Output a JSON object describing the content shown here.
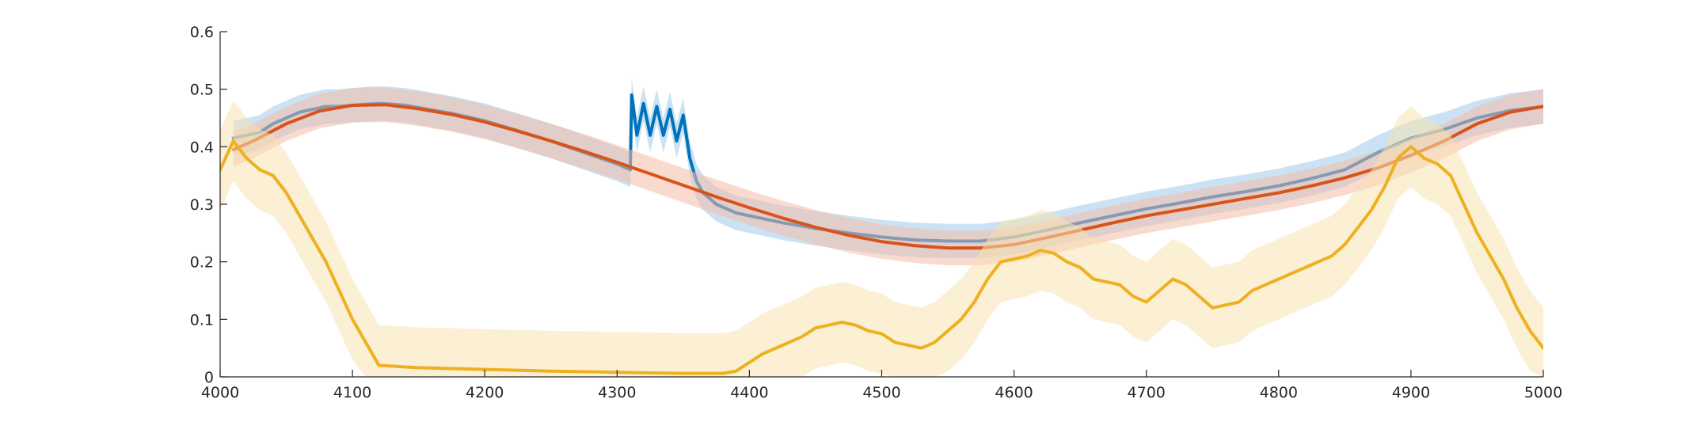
{
  "chart_data": {
    "type": "line",
    "title": "",
    "xlabel": "",
    "ylabel": "",
    "xlim": [
      4000,
      5000
    ],
    "ylim": [
      0,
      0.6
    ],
    "x_ticks": [
      "4000",
      "4100",
      "4200",
      "4300",
      "4400",
      "4500",
      "4600",
      "4700",
      "4800",
      "4900",
      "5000"
    ],
    "y_ticks": [
      "0",
      "0.1",
      "0.2",
      "0.3",
      "0.4",
      "0.5",
      "0.6"
    ],
    "grid": false,
    "legend": "none",
    "series": [
      {
        "color": "#0072BD",
        "band_color": "#9ECAE9",
        "band_width": 0.03,
        "x": [
          4010,
          4020,
          4030,
          4040,
          4050,
          4060,
          4070,
          4080,
          4090,
          4100,
          4110,
          4120,
          4130,
          4140,
          4150,
          4175,
          4200,
          4225,
          4250,
          4275,
          4300,
          4310,
          4311,
          4315,
          4320,
          4325,
          4330,
          4335,
          4340,
          4345,
          4350,
          4355,
          4360,
          4365,
          4370,
          4375,
          4380,
          4390,
          4400,
          4425,
          4450,
          4475,
          4500,
          4525,
          4550,
          4575,
          4600,
          4625,
          4650,
          4675,
          4700,
          4725,
          4750,
          4775,
          4800,
          4825,
          4850,
          4875,
          4900,
          4925,
          4950,
          4975,
          5000
        ],
        "y": [
          0.415,
          0.42,
          0.425,
          0.44,
          0.45,
          0.46,
          0.465,
          0.47,
          0.47,
          0.472,
          0.474,
          0.475,
          0.474,
          0.472,
          0.468,
          0.458,
          0.445,
          0.428,
          0.41,
          0.39,
          0.37,
          0.36,
          0.49,
          0.42,
          0.475,
          0.42,
          0.47,
          0.42,
          0.465,
          0.41,
          0.455,
          0.38,
          0.34,
          0.32,
          0.31,
          0.3,
          0.295,
          0.285,
          0.28,
          0.268,
          0.258,
          0.25,
          0.243,
          0.238,
          0.236,
          0.236,
          0.243,
          0.255,
          0.268,
          0.28,
          0.292,
          0.302,
          0.313,
          0.322,
          0.332,
          0.345,
          0.36,
          0.39,
          0.415,
          0.43,
          0.45,
          0.463,
          0.47
        ]
      },
      {
        "color": "#D95319",
        "band_color": "#F4BCA7",
        "band_width": 0.03,
        "x": [
          4010,
          4025,
          4050,
          4075,
          4100,
          4125,
          4150,
          4175,
          4200,
          4225,
          4250,
          4275,
          4300,
          4325,
          4350,
          4375,
          4400,
          4425,
          4450,
          4475,
          4500,
          4525,
          4550,
          4575,
          4600,
          4625,
          4650,
          4675,
          4700,
          4725,
          4750,
          4775,
          4800,
          4825,
          4850,
          4875,
          4900,
          4925,
          4950,
          4975,
          5000
        ],
        "y": [
          0.395,
          0.41,
          0.44,
          0.462,
          0.472,
          0.473,
          0.466,
          0.456,
          0.443,
          0.427,
          0.41,
          0.392,
          0.373,
          0.353,
          0.333,
          0.313,
          0.294,
          0.276,
          0.26,
          0.246,
          0.235,
          0.228,
          0.224,
          0.224,
          0.23,
          0.242,
          0.255,
          0.268,
          0.28,
          0.29,
          0.3,
          0.31,
          0.32,
          0.332,
          0.346,
          0.363,
          0.385,
          0.41,
          0.44,
          0.46,
          0.47
        ]
      },
      {
        "color": "#EDB120",
        "band_color": "#F7E2B0",
        "band_width": 0.07,
        "x": [
          4000,
          4010,
          4020,
          4030,
          4040,
          4050,
          4060,
          4070,
          4080,
          4090,
          4100,
          4110,
          4120,
          4150,
          4200,
          4250,
          4300,
          4350,
          4380,
          4390,
          4400,
          4410,
          4420,
          4430,
          4440,
          4450,
          4460,
          4470,
          4480,
          4490,
          4500,
          4510,
          4520,
          4530,
          4540,
          4550,
          4560,
          4570,
          4580,
          4590,
          4600,
          4610,
          4620,
          4630,
          4640,
          4650,
          4660,
          4670,
          4680,
          4690,
          4700,
          4710,
          4720,
          4730,
          4740,
          4750,
          4760,
          4770,
          4780,
          4790,
          4800,
          4810,
          4820,
          4830,
          4840,
          4850,
          4860,
          4870,
          4880,
          4890,
          4900,
          4910,
          4920,
          4930,
          4940,
          4950,
          4960,
          4970,
          4980,
          4990,
          5000
        ],
        "y": [
          0.36,
          0.41,
          0.38,
          0.36,
          0.35,
          0.32,
          0.28,
          0.24,
          0.2,
          0.15,
          0.1,
          0.06,
          0.02,
          0.016,
          0.013,
          0.01,
          0.008,
          0.006,
          0.006,
          0.01,
          0.025,
          0.04,
          0.05,
          0.06,
          0.07,
          0.085,
          0.09,
          0.095,
          0.09,
          0.08,
          0.075,
          0.06,
          0.055,
          0.05,
          0.06,
          0.08,
          0.1,
          0.13,
          0.17,
          0.2,
          0.205,
          0.21,
          0.22,
          0.215,
          0.2,
          0.19,
          0.17,
          0.165,
          0.16,
          0.14,
          0.13,
          0.15,
          0.17,
          0.16,
          0.14,
          0.12,
          0.125,
          0.13,
          0.15,
          0.16,
          0.17,
          0.18,
          0.19,
          0.2,
          0.21,
          0.23,
          0.26,
          0.29,
          0.33,
          0.38,
          0.4,
          0.38,
          0.37,
          0.35,
          0.3,
          0.25,
          0.21,
          0.17,
          0.12,
          0.08,
          0.05
        ]
      }
    ]
  }
}
